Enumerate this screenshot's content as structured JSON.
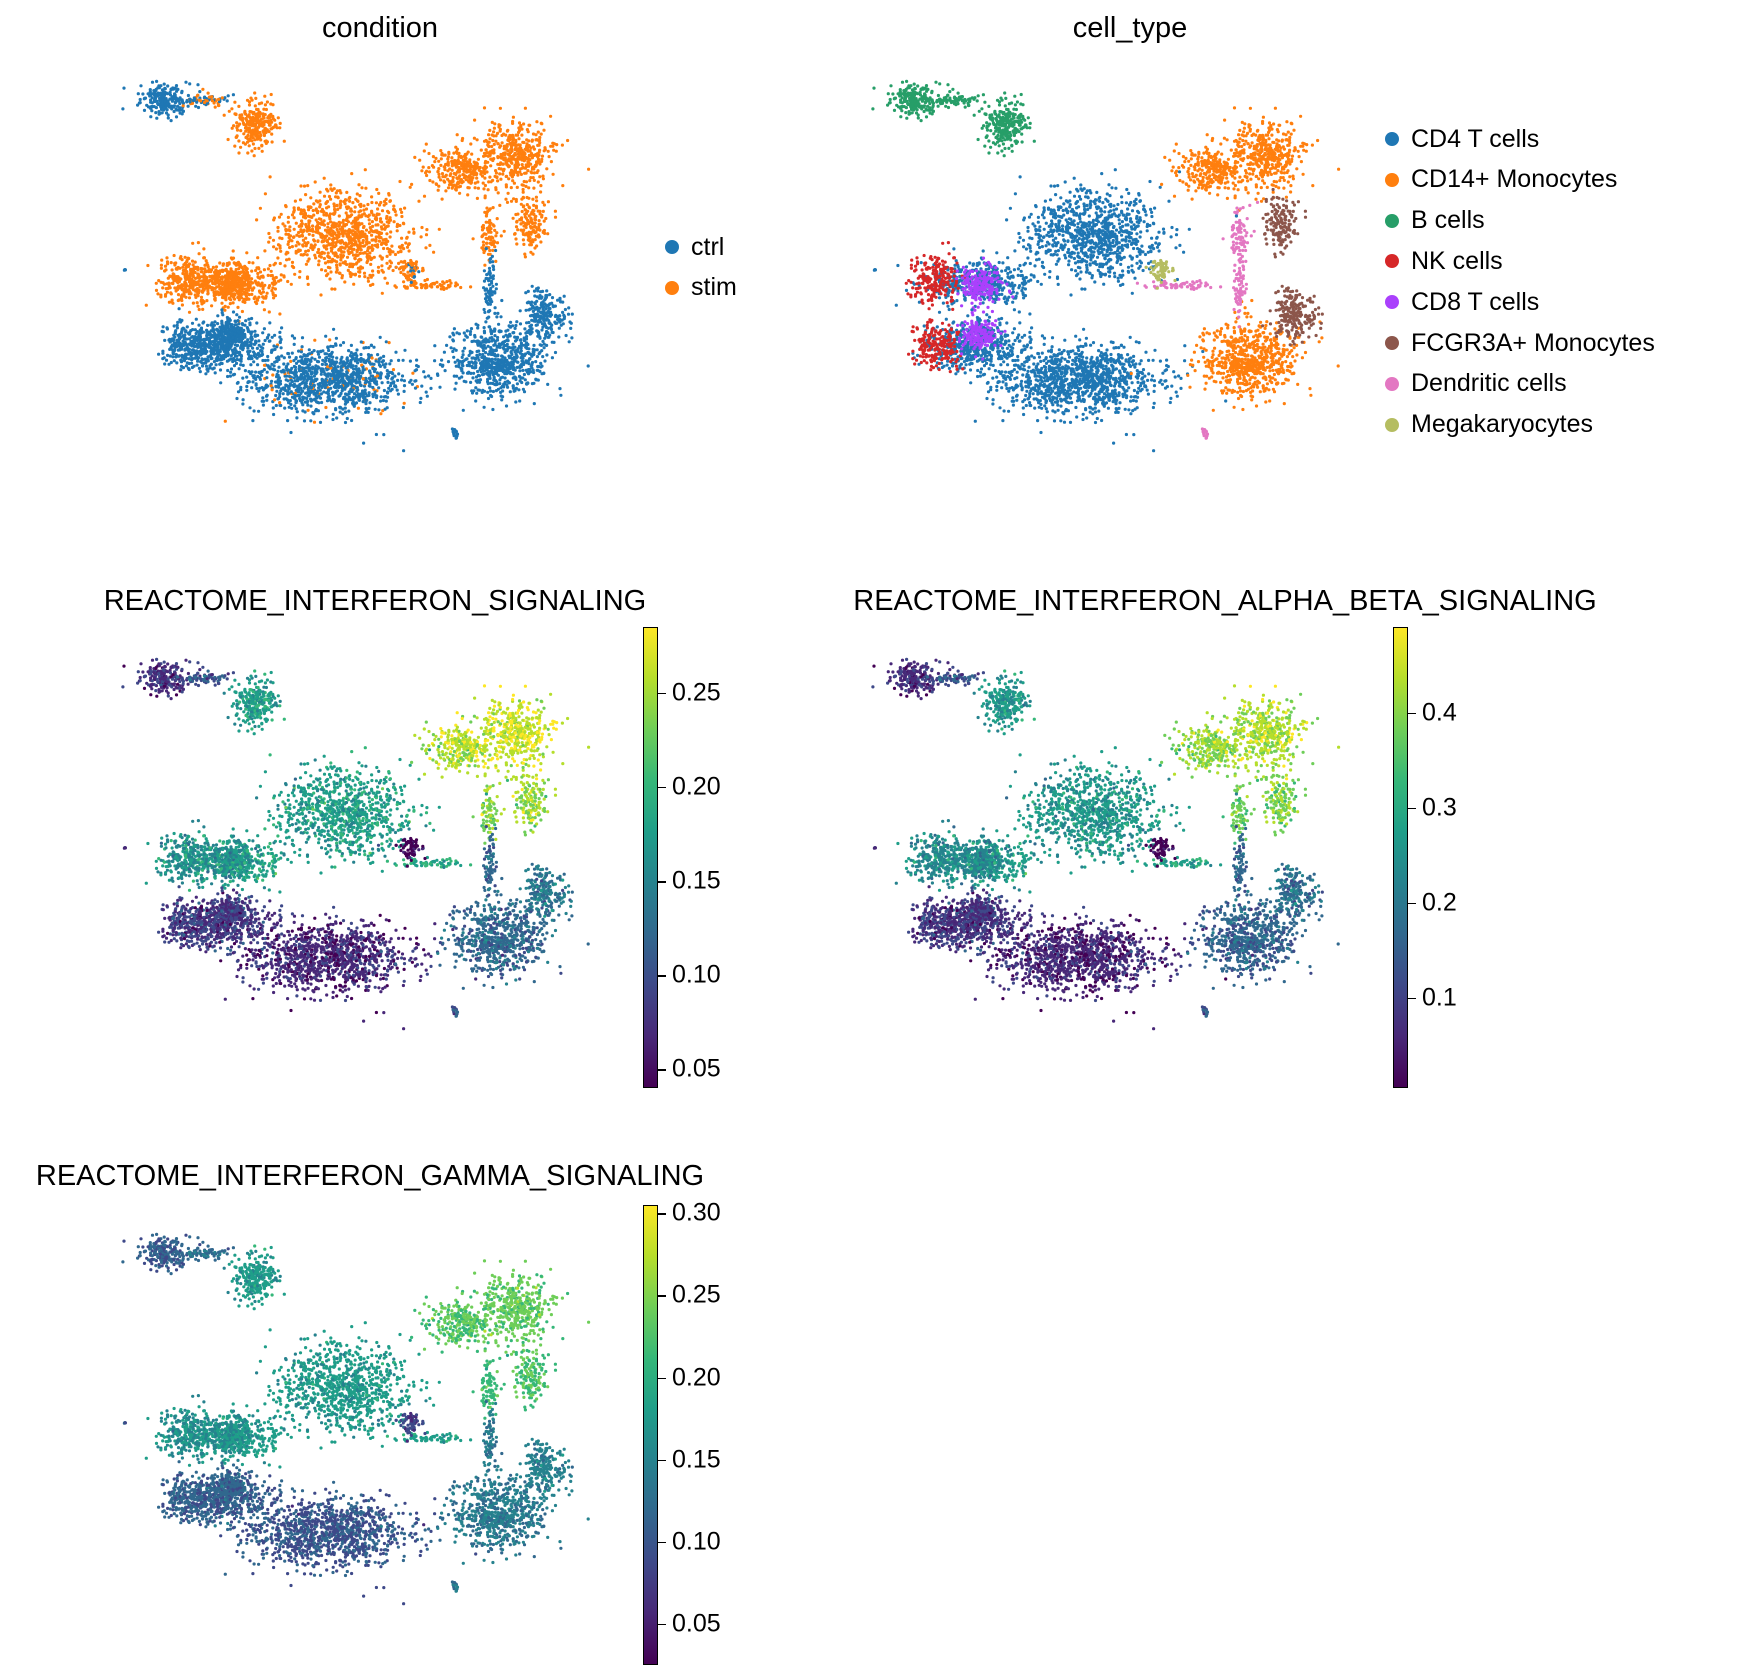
{
  "chart_data": [
    {
      "type": "scatter",
      "title": "condition",
      "color_mode": "categorical",
      "legend": [
        {
          "label": "ctrl",
          "color": "#1f77b4"
        },
        {
          "label": "stim",
          "color": "#ff7f0e"
        }
      ],
      "legend_placement": "right",
      "axes_visible": false
    },
    {
      "type": "scatter",
      "title": "cell_type",
      "color_mode": "categorical",
      "legend": [
        {
          "label": "CD4 T cells",
          "color": "#1f77b4"
        },
        {
          "label": "CD14+ Monocytes",
          "color": "#ff7f0e"
        },
        {
          "label": "B cells",
          "color": "#279e68"
        },
        {
          "label": "NK cells",
          "color": "#d62728"
        },
        {
          "label": "CD8 T cells",
          "color": "#aa40fc"
        },
        {
          "label": "FCGR3A+ Monocytes",
          "color": "#8c564b"
        },
        {
          "label": "Dendritic cells",
          "color": "#e377c2"
        },
        {
          "label": "Megakaryocytes",
          "color": "#b5bd61"
        }
      ],
      "legend_placement": "right",
      "axes_visible": false
    },
    {
      "type": "scatter",
      "title": "REACTOME_INTERFERON_SIGNALING",
      "color_mode": "continuous",
      "colormap": "viridis",
      "colorbar": {
        "min": 0.04,
        "max": 0.285,
        "ticks": [
          "0.05",
          "0.10",
          "0.15",
          "0.20",
          "0.25"
        ],
        "tick_values": [
          0.05,
          0.1,
          0.15,
          0.2,
          0.25
        ]
      },
      "axes_visible": false
    },
    {
      "type": "scatter",
      "title": "REACTOME_INTERFERON_ALPHA_BETA_SIGNALING",
      "color_mode": "continuous",
      "colormap": "viridis",
      "colorbar": {
        "min": 0.005,
        "max": 0.49,
        "ticks": [
          "0.1",
          "0.2",
          "0.3",
          "0.4"
        ],
        "tick_values": [
          0.1,
          0.2,
          0.3,
          0.4
        ]
      },
      "axes_visible": false
    },
    {
      "type": "scatter",
      "title": "REACTOME_INTERFERON_GAMMA_SIGNALING",
      "color_mode": "continuous",
      "colormap": "viridis",
      "colorbar": {
        "min": 0.025,
        "max": 0.305,
        "ticks": [
          "0.05",
          "0.10",
          "0.15",
          "0.20",
          "0.25",
          "0.30"
        ],
        "tick_values": [
          0.05,
          0.1,
          0.15,
          0.2,
          0.25,
          0.3
        ]
      },
      "axes_visible": false
    }
  ]
}
